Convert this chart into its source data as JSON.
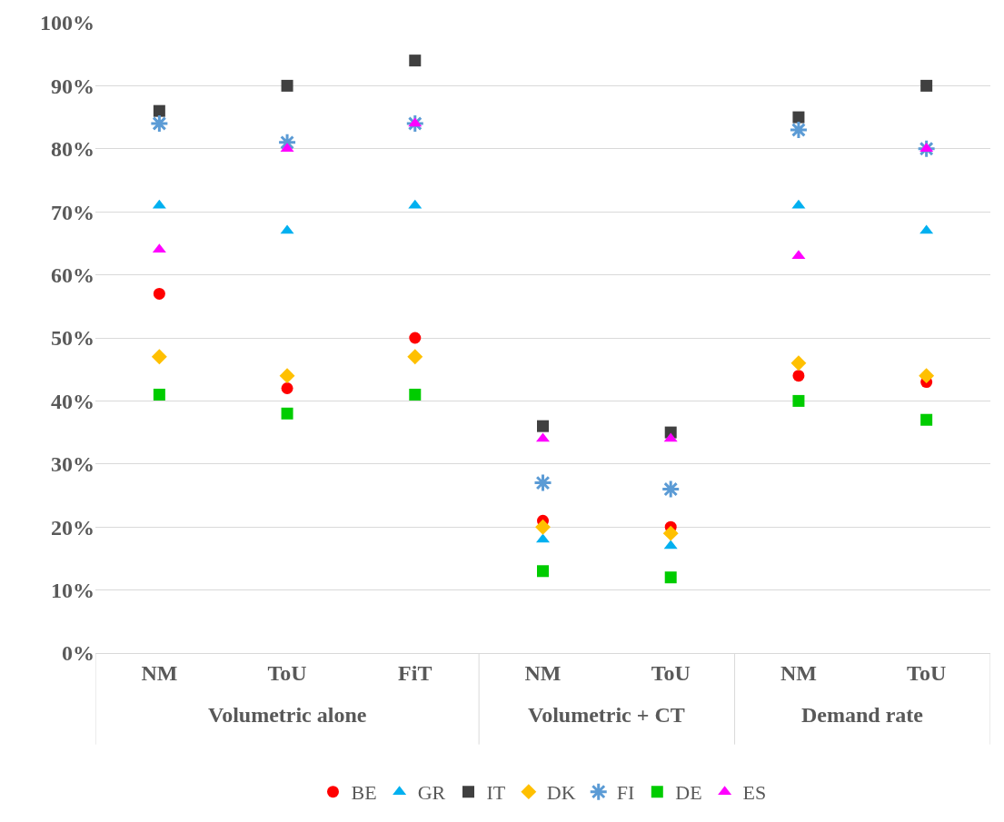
{
  "chart_data": {
    "type": "scatter",
    "categories": [
      "NM",
      "ToU",
      "FiT",
      "NM",
      "ToU",
      "NM",
      "ToU"
    ],
    "annotations": [
      "Volumetric alone",
      "Volumetric + CT",
      "Demand rate"
    ],
    "ylim": [
      0,
      100
    ],
    "yticks": [
      {
        "value": 0,
        "label": "0%"
      },
      {
        "value": 10,
        "label": "10%"
      },
      {
        "value": 20,
        "label": "20%"
      },
      {
        "value": 30,
        "label": "30%"
      },
      {
        "value": 40,
        "label": "40%"
      },
      {
        "value": 50,
        "label": "50%"
      },
      {
        "value": 60,
        "label": "60%"
      },
      {
        "value": 70,
        "label": "70%"
      },
      {
        "value": 80,
        "label": "80%"
      },
      {
        "value": 90,
        "label": "90%"
      },
      {
        "value": 100,
        "label": "100%"
      }
    ],
    "grid": "y",
    "legend": "bottom",
    "series": [
      {
        "name": "BE",
        "color": "#ff0000",
        "marker": "circle",
        "values": [
          57,
          42,
          50,
          21,
          20,
          44,
          43
        ]
      },
      {
        "name": "GR",
        "color": "#00b0f0",
        "marker": "triangle",
        "values": [
          71,
          67,
          71,
          18,
          17,
          71,
          67
        ]
      },
      {
        "name": "IT",
        "color": "#404040",
        "marker": "square",
        "values": [
          86,
          90,
          94,
          36,
          35,
          85,
          90
        ]
      },
      {
        "name": "DK",
        "color": "#ffc000",
        "marker": "diamond",
        "values": [
          47,
          44,
          47,
          20,
          19,
          46,
          44
        ]
      },
      {
        "name": "FI",
        "color": "#5b9bd5",
        "marker": "cross",
        "values": [
          84,
          81,
          84,
          27,
          26,
          83,
          80
        ]
      },
      {
        "name": "DE",
        "color": "#00cc00",
        "marker": "square",
        "values": [
          41,
          38,
          41,
          13,
          12,
          40,
          37
        ]
      },
      {
        "name": "ES",
        "color": "#ff00ff",
        "marker": "triangle",
        "values": [
          64,
          80,
          84,
          34,
          34,
          63,
          80
        ]
      }
    ]
  }
}
